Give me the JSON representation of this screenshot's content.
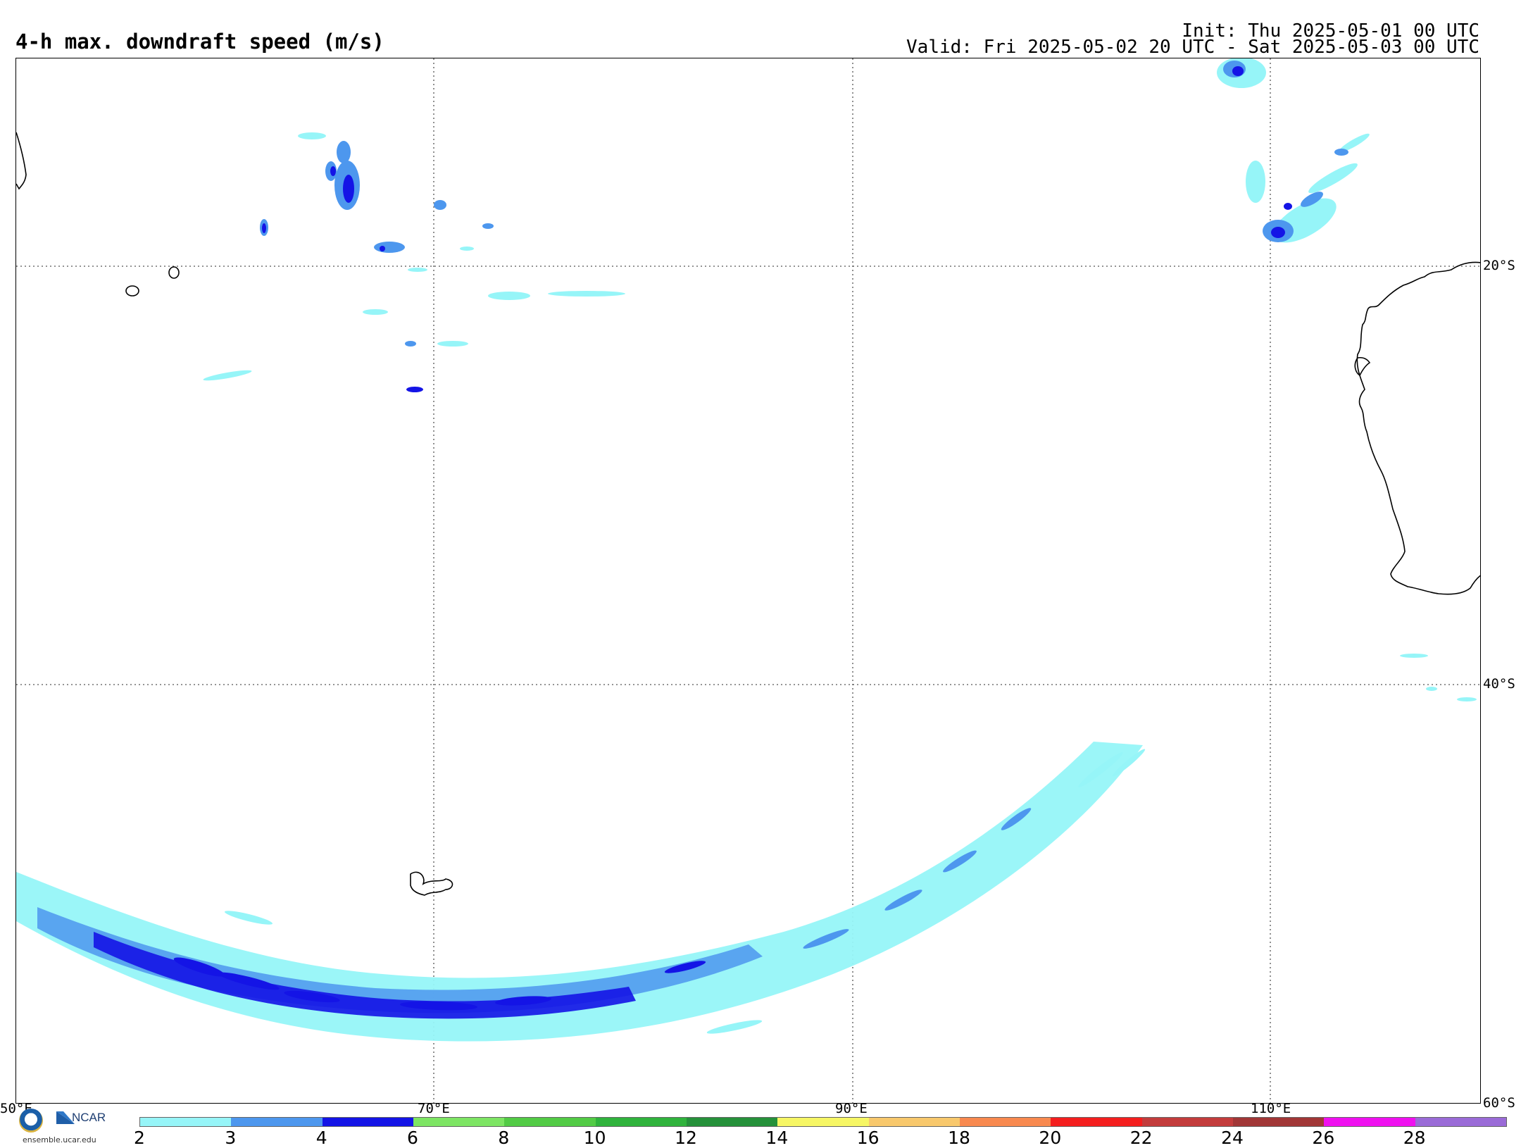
{
  "header": {
    "title": "4-h max. downdraft speed (m/s)",
    "init": "Init: Thu 2025-05-01 00 UTC",
    "valid": "Valid: Fri 2025-05-02 20 UTC - Sat 2025-05-03 00 UTC"
  },
  "map": {
    "lat_labels": [
      "20°S",
      "40°S",
      "60°S"
    ],
    "lon_labels": [
      "50°E",
      "70°E",
      "90°E",
      "110°E"
    ]
  },
  "colorbar": {
    "ticks": [
      "2",
      "3",
      "4",
      "6",
      "8",
      "10",
      "12",
      "14",
      "16",
      "18",
      "20",
      "22",
      "24",
      "26",
      "28"
    ],
    "colors": [
      "#96f5f8",
      "#4d97ee",
      "#1414e6",
      "#7de563",
      "#52cb45",
      "#2fb33c",
      "#25913a",
      "#f6f664",
      "#f8c86c",
      "#f8894f",
      "#f41e1e",
      "#c33c3c",
      "#a13636",
      "#ef10ef",
      "#9a6bd7"
    ]
  },
  "logo": {
    "nsf": "NSF",
    "ncar": "NCAR",
    "url": "ensemble.ucar.edu"
  }
}
